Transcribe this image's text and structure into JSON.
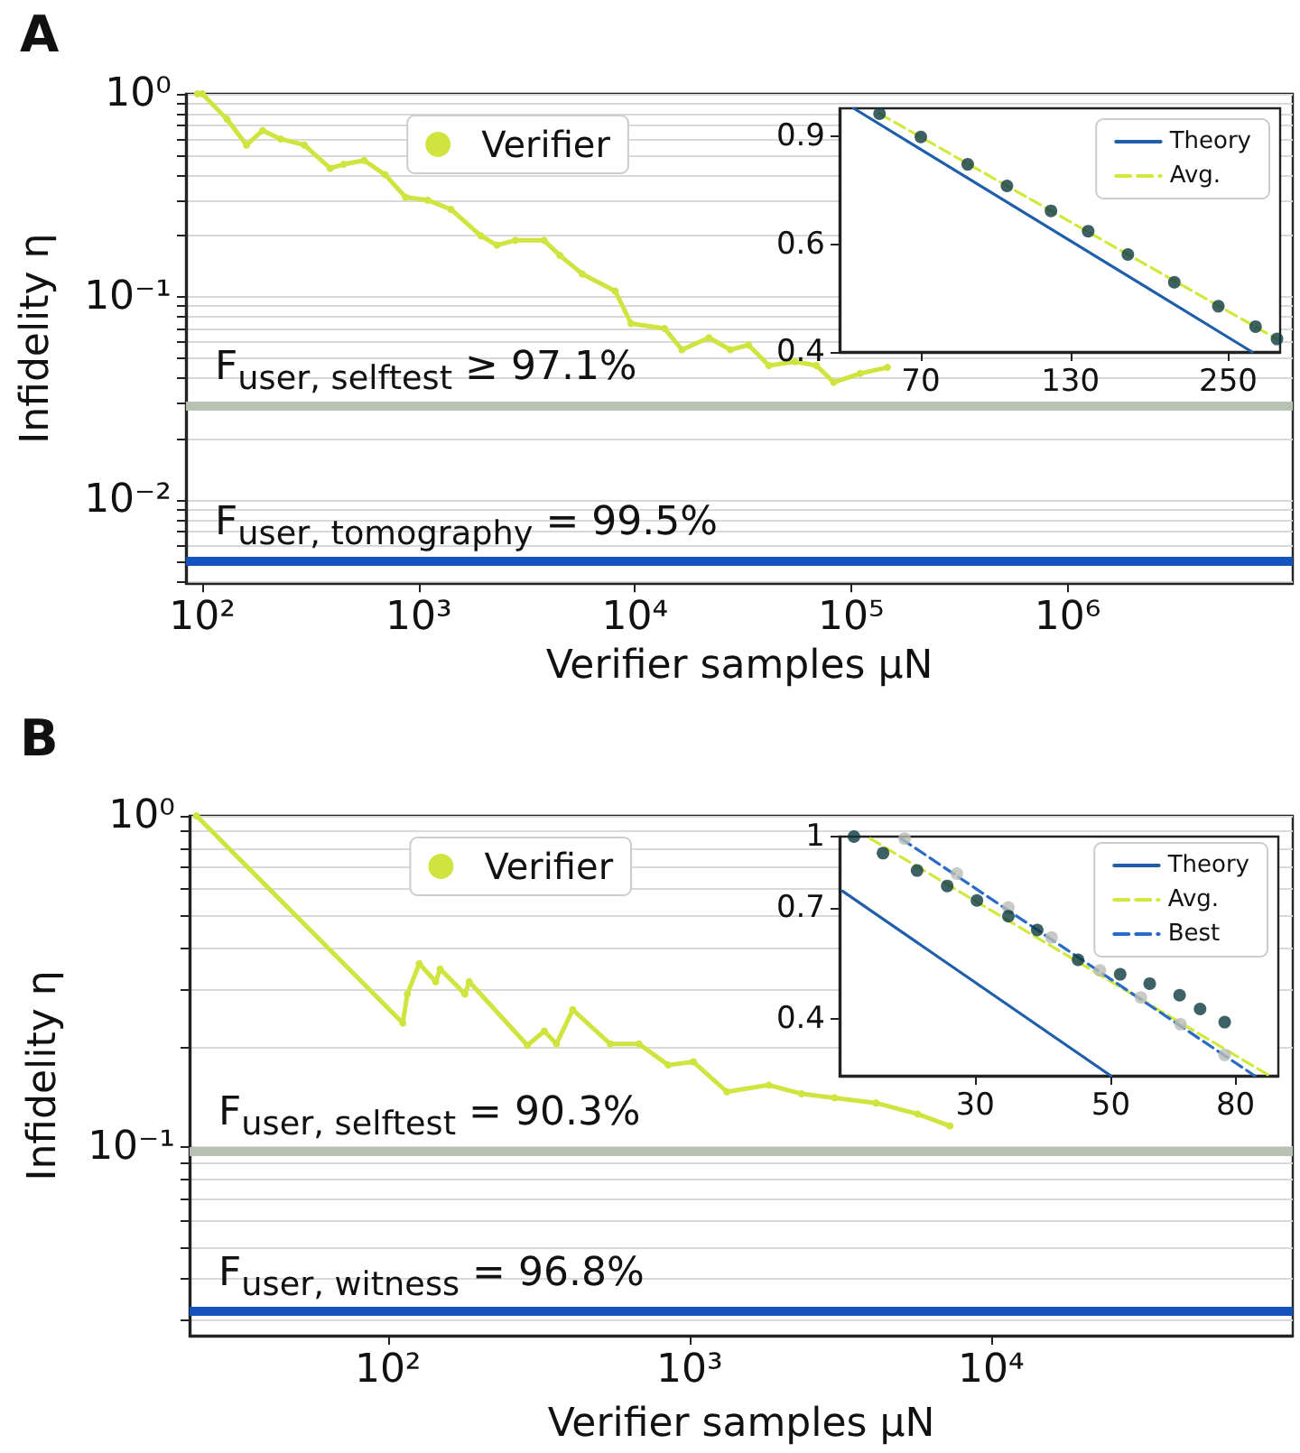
{
  "chart_data": [
    {
      "type": "line",
      "title": "A",
      "xlabel": "Verifier samples μN",
      "ylabel": "Infidelity η",
      "log": "xy",
      "xlim": [
        84,
        11000000
      ],
      "xticks": [
        {
          "value": 100,
          "label": "10²"
        },
        {
          "value": 1000,
          "label": "10³"
        },
        {
          "value": 10000,
          "label": "10⁴"
        },
        {
          "value": 100000,
          "label": "10⁵"
        },
        {
          "value": 1000000,
          "label": "10⁶"
        }
      ],
      "ylim": [
        0.0039,
        1
      ],
      "yticks": [
        {
          "value": 0.004,
          "label": null
        },
        {
          "value": 0.005,
          "label": null
        },
        {
          "value": 0.006,
          "label": null
        },
        {
          "value": 0.007,
          "label": null
        },
        {
          "value": 0.008,
          "label": null
        },
        {
          "value": 0.009,
          "label": null
        },
        {
          "value": 0.01,
          "label": "10⁻²"
        },
        {
          "value": 0.02,
          "label": null
        },
        {
          "value": 0.03,
          "label": null
        },
        {
          "value": 0.04,
          "label": null
        },
        {
          "value": 0.05,
          "label": null
        },
        {
          "value": 0.06,
          "label": null
        },
        {
          "value": 0.07,
          "label": null
        },
        {
          "value": 0.08,
          "label": null
        },
        {
          "value": 0.09,
          "label": null
        },
        {
          "value": 0.1,
          "label": "10⁻¹"
        },
        {
          "value": 0.2,
          "label": null
        },
        {
          "value": 0.3,
          "label": null
        },
        {
          "value": 0.4,
          "label": null
        },
        {
          "value": 0.5,
          "label": null
        },
        {
          "value": 0.6,
          "label": null
        },
        {
          "value": 0.7,
          "label": null
        },
        {
          "value": 0.8,
          "label": null
        },
        {
          "value": 0.9,
          "label": null
        },
        {
          "value": 1,
          "label": "10⁰"
        }
      ],
      "grid": "y",
      "legend": "top",
      "marker": "circle",
      "series": [
        {
          "name": "Verifier",
          "color": "#cfe43f",
          "x": [
            95,
            100,
            130,
            160,
            190,
            230,
            296,
            390,
            450,
            560,
            700,
            870,
            1100,
            1410,
            1940,
            2300,
            2800,
            3800,
            4500,
            5700,
            8100,
            9600,
            13700,
            16500,
            22000,
            27600,
            33500,
            41600,
            55000,
            69000,
            83000,
            110000,
            147000
          ],
          "values": [
            1.0,
            1.0,
            0.75,
            0.56,
            0.66,
            0.6,
            0.56,
            0.43,
            0.45,
            0.47,
            0.4,
            0.31,
            0.3,
            0.27,
            0.2,
            0.18,
            0.19,
            0.19,
            0.16,
            0.13,
            0.107,
            0.074,
            0.07,
            0.055,
            0.063,
            0.055,
            0.058,
            0.046,
            0.048,
            0.046,
            0.038,
            0.042,
            0.045
          ]
        }
      ],
      "ref_lines": [
        {
          "axis": "y",
          "value": 0.029,
          "color": "#b8c2b2"
        },
        {
          "axis": "y",
          "value": 0.005,
          "color": "#1452bd"
        }
      ],
      "annotations": [
        {
          "text": "F$_{user, selftest}$ ≥ 97.1%",
          "y": 0.029
        },
        {
          "text": "F$_{user, tomography}$ = 99.5%",
          "y": 0.005
        }
      ]
    },
    {
      "type": "line",
      "log": "xy",
      "xlim": [
        50,
        310
      ],
      "xticks": [
        70,
        130,
        250
      ],
      "ylim": [
        0.4,
        1
      ],
      "yticks": [
        0.4,
        0.6,
        0.9
      ],
      "legend": "top right",
      "series": [
        {
          "name": "Theory",
          "color": "#1f5ea8",
          "line_style": "solid",
          "marker": "none",
          "x": [
            53,
            276
          ],
          "values": [
            1.0,
            0.4
          ]
        },
        {
          "type": "scatter",
          "color": "#0e3a3f",
          "marker": "circle",
          "x": [
            59,
            70,
            85,
            100,
            120,
            140,
            165,
            200,
            240,
            280,
            306
          ],
          "values": [
            0.98,
            0.898,
            0.81,
            0.747,
            0.68,
            0.63,
            0.577,
            0.52,
            0.475,
            0.44,
            0.42
          ]
        },
        {
          "name": "Avg.",
          "color": "#d2e83c",
          "line_style": "dashed",
          "marker": "none",
          "x": [
            59,
            306
          ],
          "values": [
            0.98,
            0.42
          ]
        }
      ]
    },
    {
      "type": "line",
      "title": "B",
      "xlabel": "Verifier samples μN",
      "ylabel": "Infidelity η",
      "log": "xy",
      "xlim": [
        22,
        100000
      ],
      "xticks": [
        {
          "value": 100,
          "label": "10²"
        },
        {
          "value": 1000,
          "label": "10³"
        },
        {
          "value": 10000,
          "label": "10⁴"
        }
      ],
      "ylim": [
        0.027,
        1
      ],
      "yticks": [
        {
          "value": 0.03,
          "label": null
        },
        {
          "value": 0.04,
          "label": null
        },
        {
          "value": 0.05,
          "label": null
        },
        {
          "value": 0.06,
          "label": null
        },
        {
          "value": 0.07,
          "label": null
        },
        {
          "value": 0.08,
          "label": null
        },
        {
          "value": 0.09,
          "label": null
        },
        {
          "value": 0.1,
          "label": "10⁻¹"
        },
        {
          "value": 0.2,
          "label": null
        },
        {
          "value": 0.3,
          "label": null
        },
        {
          "value": 0.4,
          "label": null
        },
        {
          "value": 0.5,
          "label": null
        },
        {
          "value": 0.6,
          "label": null
        },
        {
          "value": 0.7,
          "label": null
        },
        {
          "value": 0.8,
          "label": null
        },
        {
          "value": 0.9,
          "label": null
        },
        {
          "value": 1,
          "label": "10⁰"
        }
      ],
      "grid": "y",
      "legend": "top",
      "marker": "circle",
      "series": [
        {
          "name": "Verifier",
          "color": "#cfe43f",
          "x": [
            23.2,
            112,
            116,
            127,
            144,
            149,
            180,
            186,
            290,
            330,
            362,
            410,
            546,
            680,
            850,
            1030,
            1330,
            1830,
            2350,
            3030,
            4150,
            5700,
            7300
          ],
          "values": [
            1.0,
            0.237,
            0.29,
            0.358,
            0.316,
            0.345,
            0.29,
            0.316,
            0.203,
            0.224,
            0.205,
            0.26,
            0.205,
            0.205,
            0.177,
            0.181,
            0.147,
            0.154,
            0.145,
            0.141,
            0.136,
            0.126,
            0.116
          ]
        }
      ],
      "ref_lines": [
        {
          "axis": "y",
          "value": 0.097,
          "color": "#b8c2b2"
        },
        {
          "axis": "y",
          "value": 0.032,
          "color": "#1452bd"
        }
      ],
      "annotations": [
        {
          "text": "F$_{user, selftest}$ = 90.3%",
          "y": 0.097
        },
        {
          "text": "F$_{user, witness}$ = 96.8%",
          "y": 0.032
        }
      ]
    },
    {
      "type": "line",
      "log": "xy",
      "xlim": [
        18,
        94
      ],
      "xticks": [
        30,
        50,
        80
      ],
      "ylim": [
        0.3,
        1
      ],
      "yticks": [
        0.4,
        0.7,
        1
      ],
      "legend": "top right",
      "series": [
        {
          "name": "Theory",
          "color": "#1f5ea8",
          "line_style": "solid",
          "marker": "none",
          "x": [
            18.2,
            50
          ],
          "values": [
            0.76,
            0.3
          ]
        },
        {
          "type": "scatter",
          "color": "#b9bdb6",
          "marker": "circle",
          "x": [
            23,
            28,
            34,
            40,
            48,
            56,
            65,
            76.8
          ],
          "values": [
            0.99,
            0.83,
            0.7,
            0.602,
            0.51,
            0.445,
            0.389,
            0.333
          ]
        },
        {
          "type": "scatter",
          "color": "#0e3a3f",
          "marker": "circle",
          "x": [
            19,
            21.2,
            24.1,
            27,
            30.2,
            34,
            37.9,
            44.2,
            51.8,
            57.9,
            64.8,
            70,
            76.8
          ],
          "values": [
            1.0,
            0.92,
            0.843,
            0.78,
            0.725,
            0.67,
            0.625,
            0.538,
            0.5,
            0.477,
            0.45,
            0.42,
            0.393
          ]
        },
        {
          "name": "Avg.",
          "color": "#d2e83c",
          "line_style": "dashed",
          "marker": "none",
          "x": [
            20.2,
            91
          ],
          "values": [
            0.99,
            0.3
          ]
        },
        {
          "name": "Best",
          "color": "#2a6bc6",
          "line_style": "dashed",
          "marker": "none",
          "x": [
            22.7,
            86
          ],
          "values": [
            0.99,
            0.3
          ]
        }
      ]
    }
  ]
}
